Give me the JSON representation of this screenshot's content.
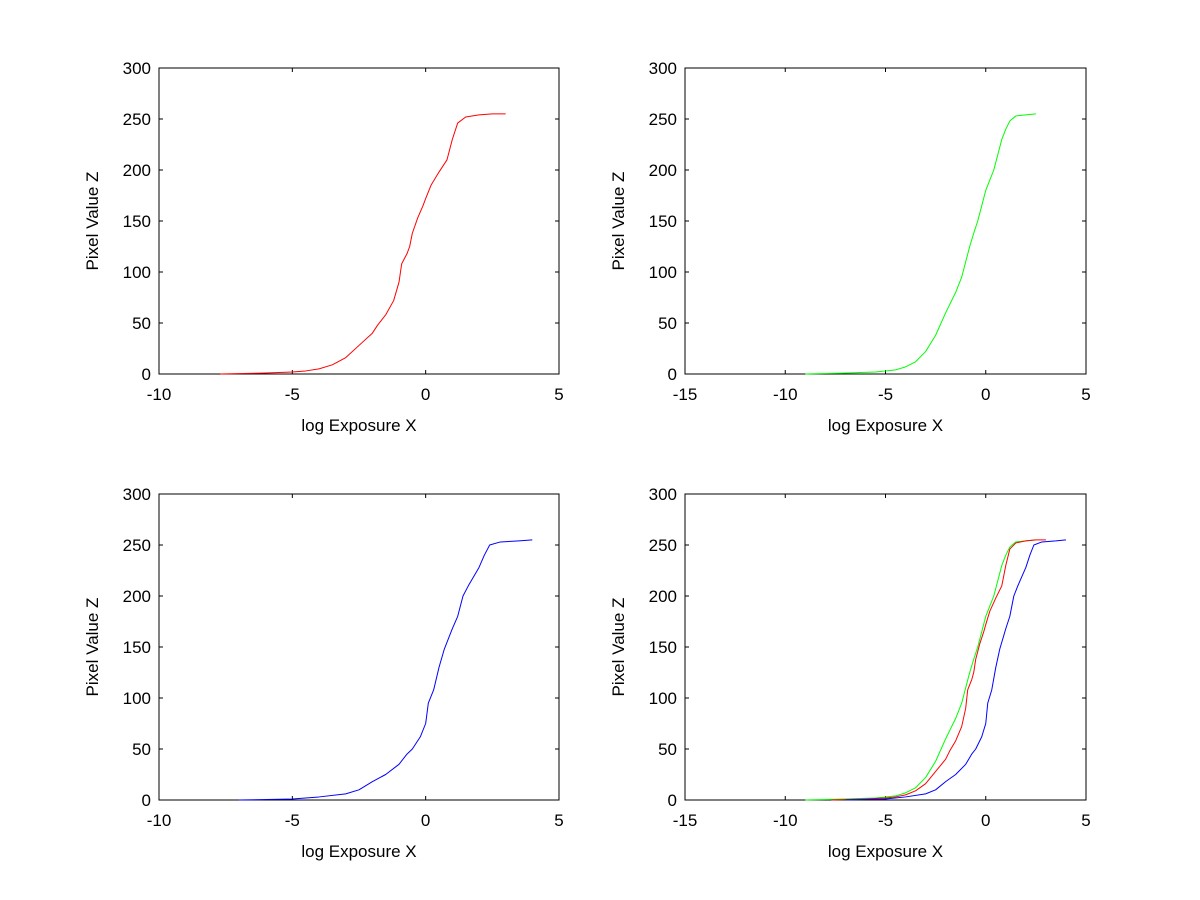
{
  "chart_data": [
    {
      "type": "line",
      "xlabel": "log Exposure X",
      "ylabel": "Pixel Value Z",
      "xlim": [
        -10,
        5
      ],
      "ylim": [
        0,
        300
      ],
      "xticks": [
        -10,
        -5,
        0,
        5
      ],
      "yticks": [
        0,
        50,
        100,
        150,
        200,
        250,
        300
      ],
      "grid": false,
      "series": [
        {
          "color": "#ff0000",
          "x": [
            -7.7,
            -6,
            -5,
            -4.5,
            -4,
            -3.5,
            -3,
            -2.5,
            -2,
            -1.8,
            -1.5,
            -1.2,
            -1,
            -0.9,
            -0.8,
            -0.7,
            -0.6,
            -0.5,
            -0.3,
            -0.1,
            0,
            0.2,
            0.5,
            0.8,
            1,
            1.2,
            1.5,
            2,
            2.5,
            3
          ],
          "y": [
            0,
            1,
            2,
            3,
            5,
            9,
            16,
            28,
            40,
            48,
            58,
            72,
            90,
            108,
            113,
            118,
            125,
            138,
            153,
            165,
            172,
            185,
            198,
            210,
            230,
            246,
            252,
            254,
            255,
            255
          ]
        }
      ]
    },
    {
      "type": "line",
      "xlabel": "log Exposure X",
      "ylabel": "Pixel Value Z",
      "xlim": [
        -15,
        5
      ],
      "ylim": [
        0,
        300
      ],
      "xticks": [
        -15,
        -10,
        -5,
        0,
        5
      ],
      "yticks": [
        0,
        50,
        100,
        150,
        200,
        250,
        300
      ],
      "grid": false,
      "series": [
        {
          "color": "#00ff00",
          "x": [
            -9,
            -7,
            -5.5,
            -5,
            -4.5,
            -4,
            -3.5,
            -3,
            -2.5,
            -2,
            -1.5,
            -1.2,
            -1,
            -0.8,
            -0.6,
            -0.4,
            -0.2,
            0,
            0.2,
            0.4,
            0.6,
            0.8,
            1,
            1.2,
            1.5,
            2,
            2.5
          ],
          "y": [
            0,
            1,
            2,
            3,
            4,
            7,
            12,
            22,
            38,
            60,
            80,
            95,
            110,
            125,
            138,
            150,
            165,
            180,
            190,
            200,
            215,
            230,
            240,
            248,
            253,
            254,
            255
          ]
        }
      ]
    },
    {
      "type": "line",
      "xlabel": "log Exposure X",
      "ylabel": "Pixel Value Z",
      "xlim": [
        -10,
        5
      ],
      "ylim": [
        0,
        300
      ],
      "xticks": [
        -10,
        -5,
        0,
        5
      ],
      "yticks": [
        0,
        50,
        100,
        150,
        200,
        250,
        300
      ],
      "grid": false,
      "series": [
        {
          "color": "#0000ff",
          "x": [
            -7,
            -5,
            -4,
            -3,
            -2.5,
            -2,
            -1.5,
            -1,
            -0.7,
            -0.5,
            -0.2,
            0,
            0.1,
            0.3,
            0.5,
            0.7,
            1,
            1.2,
            1.4,
            1.6,
            2,
            2.2,
            2.4,
            2.8,
            3.5,
            4
          ],
          "y": [
            0,
            1,
            3,
            6,
            10,
            18,
            25,
            35,
            45,
            50,
            62,
            75,
            95,
            108,
            130,
            148,
            168,
            180,
            200,
            210,
            228,
            240,
            250,
            253,
            254,
            255
          ]
        }
      ]
    },
    {
      "type": "line",
      "xlabel": "log Exposure X",
      "ylabel": "Pixel Value Z",
      "xlim": [
        -15,
        5
      ],
      "ylim": [
        0,
        300
      ],
      "xticks": [
        -15,
        -10,
        -5,
        0,
        5
      ],
      "yticks": [
        0,
        50,
        100,
        150,
        200,
        250,
        300
      ],
      "grid": false,
      "series": [
        {
          "color": "#00ff00",
          "x": [
            -9,
            -7,
            -5.5,
            -5,
            -4.5,
            -4,
            -3.5,
            -3,
            -2.5,
            -2,
            -1.5,
            -1.2,
            -1,
            -0.8,
            -0.6,
            -0.4,
            -0.2,
            0,
            0.2,
            0.4,
            0.6,
            0.8,
            1,
            1.2,
            1.5,
            2,
            2.5
          ],
          "y": [
            0,
            1,
            2,
            3,
            4,
            7,
            12,
            22,
            38,
            60,
            80,
            95,
            110,
            125,
            138,
            150,
            165,
            180,
            190,
            200,
            215,
            230,
            240,
            248,
            253,
            254,
            255
          ]
        },
        {
          "color": "#ff0000",
          "x": [
            -7.7,
            -6,
            -5,
            -4.5,
            -4,
            -3.5,
            -3,
            -2.5,
            -2,
            -1.8,
            -1.5,
            -1.2,
            -1,
            -0.9,
            -0.8,
            -0.7,
            -0.6,
            -0.5,
            -0.3,
            -0.1,
            0,
            0.2,
            0.5,
            0.8,
            1,
            1.2,
            1.5,
            2,
            2.5,
            3
          ],
          "y": [
            0,
            1,
            2,
            3,
            5,
            9,
            16,
            28,
            40,
            48,
            58,
            72,
            90,
            108,
            113,
            118,
            125,
            138,
            153,
            165,
            172,
            185,
            198,
            210,
            230,
            246,
            252,
            254,
            255,
            255
          ]
        },
        {
          "color": "#0000ff",
          "x": [
            -7,
            -5,
            -4,
            -3,
            -2.5,
            -2,
            -1.5,
            -1,
            -0.7,
            -0.5,
            -0.2,
            0,
            0.1,
            0.3,
            0.5,
            0.7,
            1,
            1.2,
            1.4,
            1.6,
            2,
            2.2,
            2.4,
            2.8,
            3.5,
            4
          ],
          "y": [
            0,
            1,
            3,
            6,
            10,
            18,
            25,
            35,
            45,
            50,
            62,
            75,
            95,
            108,
            130,
            148,
            168,
            180,
            200,
            210,
            228,
            240,
            250,
            253,
            254,
            255
          ]
        }
      ]
    }
  ]
}
